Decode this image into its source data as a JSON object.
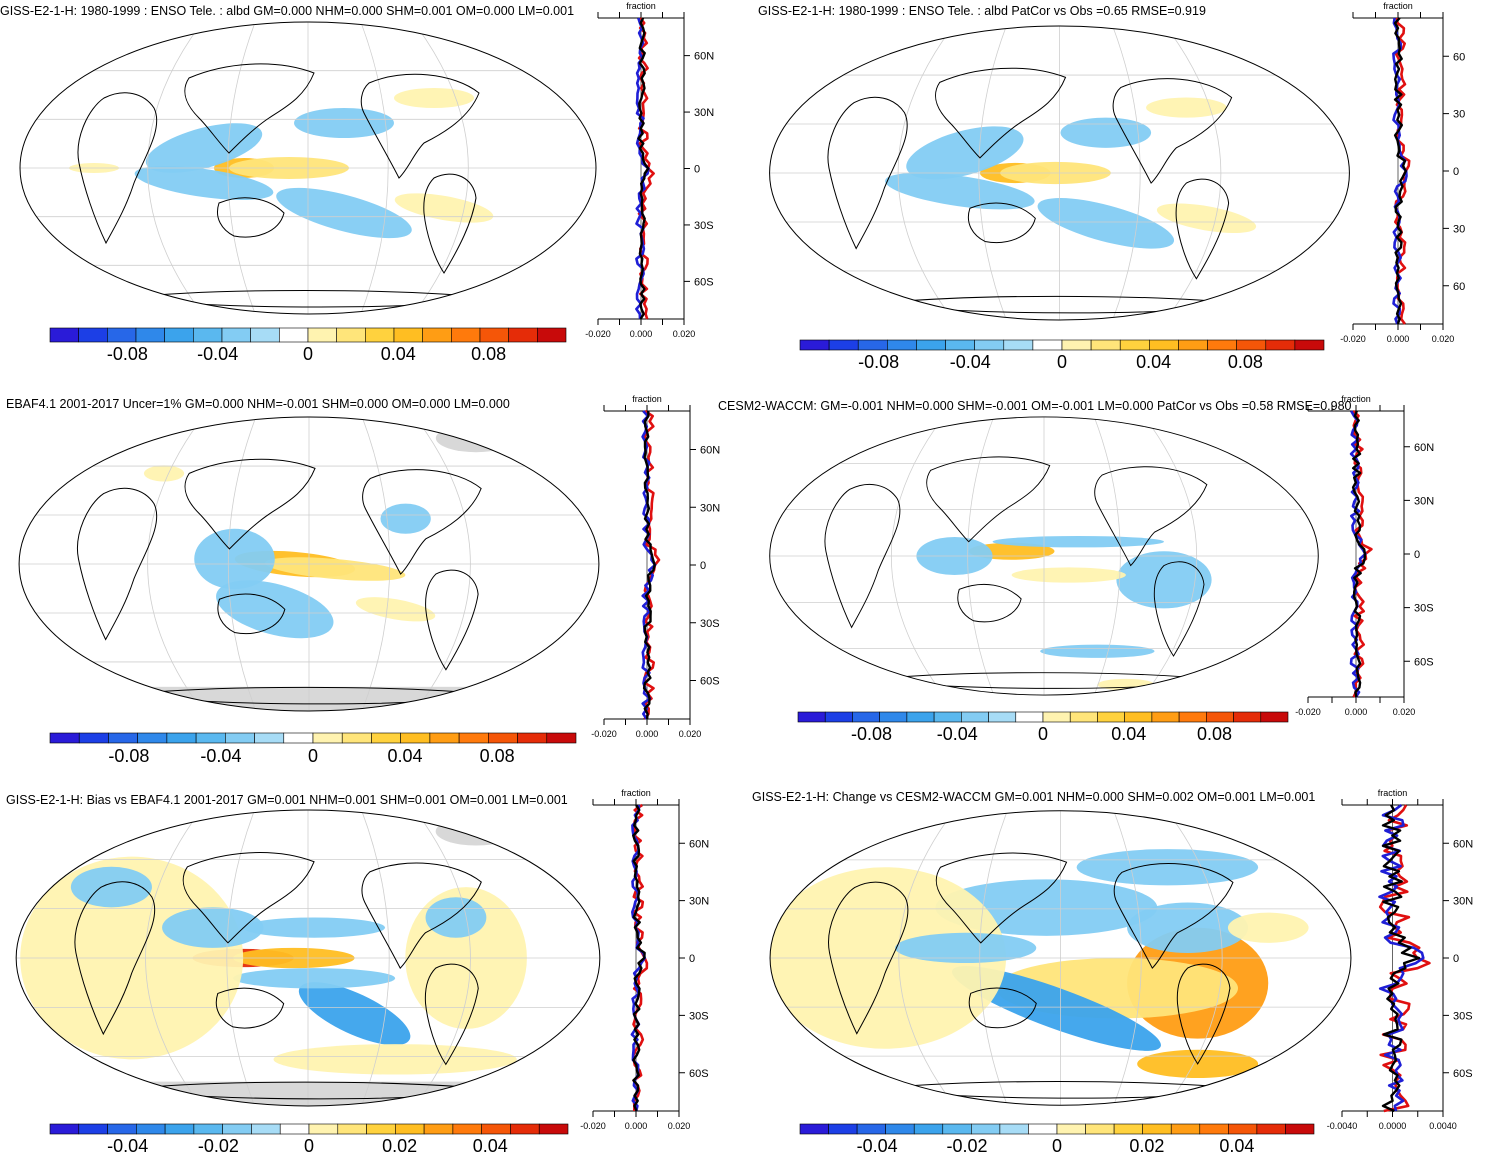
{
  "colors": {
    "land_ice": "#d8d8d8",
    "coast": "#000000",
    "grid": "#cfcfcf",
    "obs_line": "#000000",
    "zonal_a": "#1f1fd6",
    "zonal_b": "#e01010",
    "colorbar": [
      "#2a1bd8",
      "#1c3fe6",
      "#2767e8",
      "#2f88ea",
      "#3ba3ec",
      "#5ab8ef",
      "#83ccf3",
      "#a7dcf6",
      "#ffffff",
      "#fff3b0",
      "#ffe57a",
      "#ffd23e",
      "#ffbe22",
      "#ff9d14",
      "#ff7a0c",
      "#f55608",
      "#e52c08",
      "#c80a0a"
    ]
  },
  "panels": [
    {
      "id": "p1",
      "title": "GISS-E2-1-H: 1980-1999 : ENSO Tele. : albd GM=0.000 NHM=0.000 SHM=0.001 OM=0.000 LM=0.001",
      "zonal_title": "fraction",
      "lat_labels": [
        "60N",
        "30N",
        "0",
        "30S",
        "60S"
      ],
      "x_ticks": [
        "-0.020",
        "0.000",
        "0.020"
      ],
      "colorbar_labels": [
        "-0.08",
        "-0.04",
        "0",
        "0.04",
        "0.08"
      ]
    },
    {
      "id": "p2",
      "title": "GISS-E2-1-H: 1980-1999 : ENSO Tele. : albd PatCor vs Obs =0.65 RMSE=0.919",
      "zonal_title": "fraction",
      "lat_labels": [
        "60",
        "30",
        "0",
        "30",
        "60"
      ],
      "x_ticks": [
        "-0.020",
        "0.000",
        "0.020"
      ],
      "colorbar_labels": [
        "-0.08",
        "-0.04",
        "0",
        "0.04",
        "0.08"
      ]
    },
    {
      "id": "p3",
      "title": "EBAF4.1 2001-2017 Uncer=1% GM=0.000 NHM=-0.001 SHM=0.000 OM=0.000 LM=0.000",
      "zonal_title": "fraction",
      "lat_labels": [
        "60N",
        "30N",
        "0",
        "30S",
        "60S"
      ],
      "x_ticks": [
        "-0.020",
        "0.000",
        "0.020"
      ],
      "colorbar_labels": [
        "-0.08",
        "-0.04",
        "0",
        "0.04",
        "0.08"
      ]
    },
    {
      "id": "p4",
      "title": "CESM2-WACCM: GM=-0.001 NHM=0.000 SHM=-0.001 OM=-0.001 LM=0.000 PatCor vs Obs =0.58 RMSE=0.980",
      "zonal_title": "fraction",
      "lat_labels": [
        "60N",
        "30N",
        "0",
        "30S",
        "60S"
      ],
      "x_ticks": [
        "-0.020",
        "0.000",
        "0.020"
      ],
      "colorbar_labels": [
        "-0.08",
        "-0.04",
        "0",
        "0.04",
        "0.08"
      ]
    },
    {
      "id": "p5",
      "title": "GISS-E2-1-H: Bias vs EBAF4.1 2001-2017 GM=0.001 NHM=0.001 SHM=0.001 OM=0.001 LM=0.001",
      "zonal_title": "fraction",
      "lat_labels": [
        "60N",
        "30N",
        "0",
        "30S",
        "60S"
      ],
      "x_ticks": [
        "-0.020",
        "0.000",
        "0.020"
      ],
      "colorbar_labels": [
        "-0.04",
        "-0.02",
        "0",
        "0.02",
        "0.04"
      ]
    },
    {
      "id": "p6",
      "title": "GISS-E2-1-H: Change vs CESM2-WACCM GM=0.001 NHM=0.000 SHM=0.002 OM=0.001 LM=0.001",
      "zonal_title": "fraction",
      "lat_labels": [
        "60N",
        "30N",
        "0",
        "30S",
        "60S"
      ],
      "x_ticks": [
        "-0.0040",
        "0.0000",
        "0.0040"
      ],
      "colorbar_labels": [
        "-0.04",
        "-0.02",
        "0",
        "0.02",
        "0.04"
      ]
    }
  ]
}
